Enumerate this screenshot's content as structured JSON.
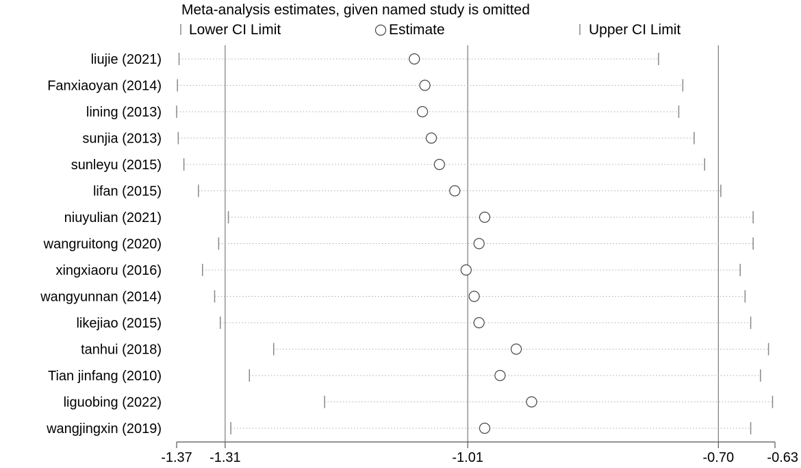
{
  "chart_data": {
    "type": "scatter",
    "title": "Meta-analysis estimates, given named study is omitted",
    "legend": {
      "position": "top",
      "items": [
        {
          "key": "lower",
          "label": "Lower CI Limit",
          "marker": "vertical-tick"
        },
        {
          "key": "estimate",
          "label": "Estimate",
          "marker": "open-circle"
        },
        {
          "key": "upper",
          "label": "Upper CI Limit",
          "marker": "vertical-tick"
        }
      ]
    },
    "x_axis": {
      "range": [
        -1.37,
        -0.63
      ],
      "ticks": [
        {
          "value": -1.37,
          "label": "-1.37"
        },
        {
          "value": -1.31,
          "label": "-1.31"
        },
        {
          "value": -1.01,
          "label": "-1.01"
        },
        {
          "value": -0.7,
          "label": "-0.70"
        },
        {
          "value": -0.63,
          "label": "-0.63"
        }
      ],
      "reference_lines": [
        -1.31,
        -1.01,
        -0.7
      ]
    },
    "studies": [
      {
        "name": "liujie (2021)",
        "lower": -1.367,
        "estimate": -1.076,
        "upper": -0.774
      },
      {
        "name": "Fanxiaoyan (2014)",
        "lower": -1.369,
        "estimate": -1.063,
        "upper": -0.744
      },
      {
        "name": "lining (2013)",
        "lower": -1.37,
        "estimate": -1.066,
        "upper": -0.749
      },
      {
        "name": "sunjia (2013)",
        "lower": -1.368,
        "estimate": -1.055,
        "upper": -0.73
      },
      {
        "name": "sunleyu (2015)",
        "lower": -1.361,
        "estimate": -1.045,
        "upper": -0.717
      },
      {
        "name": "lifan (2015)",
        "lower": -1.343,
        "estimate": -1.026,
        "upper": -0.697
      },
      {
        "name": "niuyulian (2021)",
        "lower": -1.306,
        "estimate": -0.989,
        "upper": -0.657
      },
      {
        "name": "wangruitong (2020)",
        "lower": -1.318,
        "estimate": -0.996,
        "upper": -0.657
      },
      {
        "name": "xingxiaoru (2016)",
        "lower": -1.338,
        "estimate": -1.012,
        "upper": -0.673
      },
      {
        "name": "wangyunnan (2014)",
        "lower": -1.323,
        "estimate": -1.002,
        "upper": -0.667
      },
      {
        "name": "likejiao (2015)",
        "lower": -1.316,
        "estimate": -0.996,
        "upper": -0.66
      },
      {
        "name": "tanhui (2018)",
        "lower": -1.25,
        "estimate": -0.95,
        "upper": -0.638
      },
      {
        "name": "Tian jinfang (2010)",
        "lower": -1.28,
        "estimate": -0.97,
        "upper": -0.648
      },
      {
        "name": "liguobing (2022)",
        "lower": -1.187,
        "estimate": -0.931,
        "upper": -0.633
      },
      {
        "name": "wangjingxin (2019)",
        "lower": -1.303,
        "estimate": -0.989,
        "upper": -0.66
      }
    ]
  }
}
